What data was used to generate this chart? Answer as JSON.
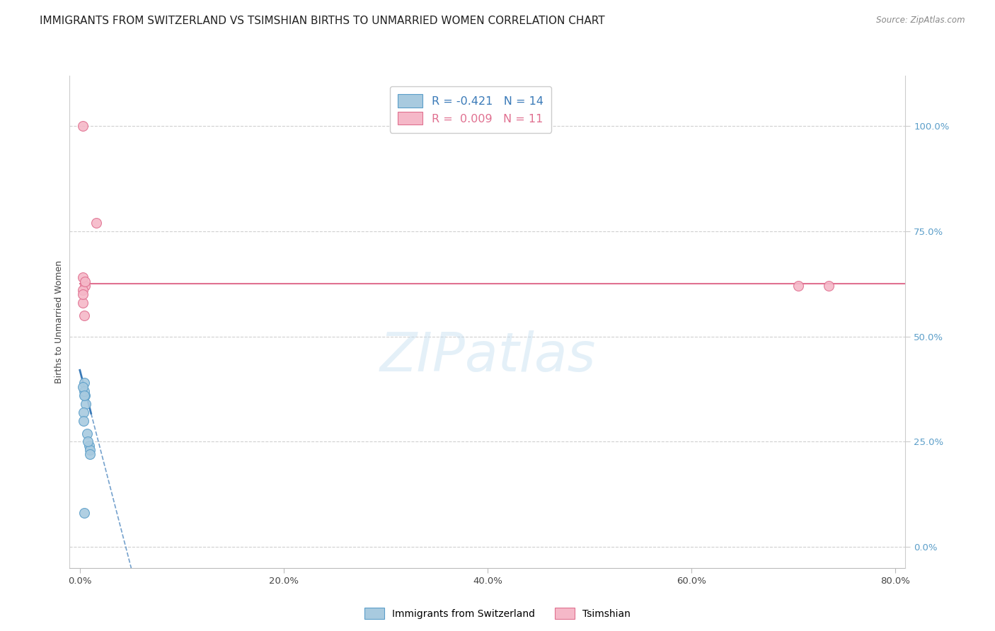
{
  "title": "IMMIGRANTS FROM SWITZERLAND VS TSIMSHIAN BIRTHS TO UNMARRIED WOMEN CORRELATION CHART",
  "source": "Source: ZipAtlas.com",
  "ylabel": "Births to Unmarried Women",
  "x_tick_labels": [
    "0.0%",
    "20.0%",
    "40.0%",
    "60.0%",
    "80.0%"
  ],
  "x_tick_values": [
    0,
    20,
    40,
    60,
    80
  ],
  "y_tick_labels_right": [
    "100.0%",
    "75.0%",
    "50.0%",
    "25.0%",
    "0.0%"
  ],
  "y_tick_values_right": [
    100,
    75,
    50,
    25,
    0
  ],
  "xlim": [
    -1,
    81
  ],
  "ylim": [
    -5,
    112
  ],
  "legend_line1": "R = -0.421   N = 14",
  "legend_line2": "R =  0.009   N = 11",
  "legend_label_blue": "Immigrants from Switzerland",
  "legend_label_pink": "Tsimshian",
  "blue_scatter_x": [
    0.4,
    0.5,
    0.6,
    0.4,
    0.3,
    0.35,
    0.35,
    0.7,
    0.9,
    1.0,
    1.0,
    0.8,
    0.4,
    0.4
  ],
  "blue_scatter_y": [
    39,
    36,
    34,
    37,
    38,
    32,
    30,
    27,
    24,
    23,
    22,
    25,
    36,
    8
  ],
  "pink_scatter_x": [
    1.6,
    0.5,
    0.3,
    0.3,
    0.4,
    0.3,
    0.5,
    0.3,
    70.5,
    73.5,
    0.3
  ],
  "pink_scatter_y": [
    77,
    62,
    64,
    61,
    55,
    58,
    63,
    100,
    62,
    62,
    60
  ],
  "blue_trend_x0": 0.0,
  "blue_trend_y0": 42,
  "blue_trend_x1": 4.5,
  "blue_trend_y1": 0,
  "pink_trend_y": 62.5,
  "blue_color": "#a8cadf",
  "blue_edge_color": "#5b9ec9",
  "pink_color": "#f5b8c8",
  "pink_edge_color": "#e07090",
  "blue_trend_color": "#3a7ab8",
  "pink_trend_color": "#e07090",
  "watermark_text": "ZIPatlas",
  "background_color": "#ffffff",
  "gridline_color": "#d0d0d0",
  "title_fontsize": 11,
  "axis_label_fontsize": 9,
  "tick_fontsize": 9.5,
  "marker_size": 100
}
